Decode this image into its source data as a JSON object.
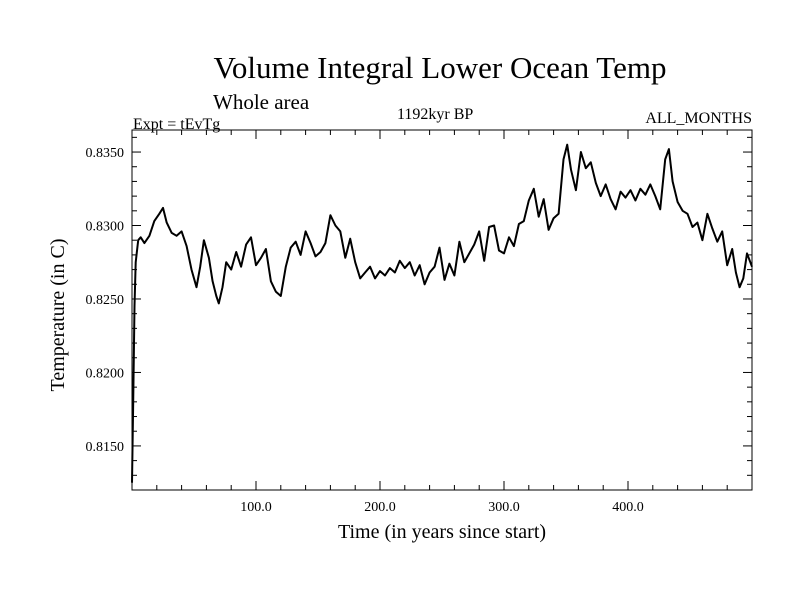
{
  "chart_data": {
    "type": "line",
    "title": "Volume Integral Lower Ocean Temp",
    "subtitle": "Whole area",
    "experiment": "Expt = tEvTg",
    "period": "1192kyr BP",
    "months": "ALL_MONTHS",
    "xlabel": "Time (in years since start)",
    "ylabel": "Temperature (in C)",
    "xlim": [
      0,
      500
    ],
    "ylim": [
      0.812,
      0.8365
    ],
    "xticks": [
      100,
      200,
      300,
      400
    ],
    "xtick_labels": [
      "100.0",
      "200.0",
      "300.0",
      "400.0"
    ],
    "yticks": [
      0.815,
      0.82,
      0.825,
      0.83,
      0.835
    ],
    "ytick_labels": [
      "0.8150",
      "0.8200",
      "0.8250",
      "0.8300",
      "0.8350"
    ],
    "grid": false,
    "series": [
      {
        "name": "Temperature",
        "x": [
          0,
          1,
          2,
          3,
          5,
          7,
          10,
          14,
          18,
          22,
          25,
          28,
          32,
          36,
          40,
          44,
          48,
          52,
          55,
          58,
          62,
          65,
          68,
          70,
          73,
          76,
          80,
          84,
          88,
          92,
          96,
          100,
          104,
          108,
          112,
          116,
          120,
          124,
          128,
          132,
          136,
          140,
          144,
          148,
          152,
          156,
          160,
          164,
          168,
          172,
          176,
          180,
          184,
          188,
          192,
          196,
          200,
          204,
          208,
          212,
          216,
          220,
          224,
          228,
          232,
          236,
          240,
          244,
          248,
          252,
          256,
          260,
          264,
          268,
          272,
          276,
          280,
          284,
          288,
          292,
          296,
          300,
          304,
          308,
          312,
          316,
          320,
          324,
          328,
          332,
          336,
          340,
          344,
          348,
          351,
          354,
          358,
          362,
          366,
          370,
          374,
          378,
          382,
          386,
          390,
          394,
          398,
          402,
          406,
          410,
          414,
          418,
          422,
          426,
          430,
          433,
          436,
          440,
          444,
          448,
          452,
          456,
          460,
          464,
          468,
          472,
          476,
          480,
          484,
          487,
          490,
          493,
          496,
          500
        ],
        "values": [
          0.8125,
          0.818,
          0.8245,
          0.8275,
          0.829,
          0.8292,
          0.8288,
          0.8293,
          0.8303,
          0.8308,
          0.8312,
          0.8302,
          0.8295,
          0.8293,
          0.8296,
          0.8286,
          0.827,
          0.8258,
          0.8272,
          0.829,
          0.8278,
          0.8262,
          0.8252,
          0.8247,
          0.8258,
          0.8275,
          0.827,
          0.8282,
          0.8272,
          0.8287,
          0.8292,
          0.8273,
          0.8278,
          0.8284,
          0.8262,
          0.8255,
          0.8252,
          0.8272,
          0.8285,
          0.8289,
          0.828,
          0.8296,
          0.8288,
          0.8279,
          0.8282,
          0.8288,
          0.8307,
          0.83,
          0.8296,
          0.8278,
          0.8291,
          0.8275,
          0.8264,
          0.8268,
          0.8272,
          0.8264,
          0.8269,
          0.8266,
          0.8271,
          0.8268,
          0.8276,
          0.8271,
          0.8275,
          0.8266,
          0.8273,
          0.826,
          0.8268,
          0.8272,
          0.8285,
          0.8263,
          0.8274,
          0.8266,
          0.8289,
          0.8275,
          0.8281,
          0.8287,
          0.8296,
          0.8276,
          0.8299,
          0.83,
          0.8283,
          0.8281,
          0.8292,
          0.8286,
          0.8301,
          0.8303,
          0.8317,
          0.8325,
          0.8306,
          0.8318,
          0.8297,
          0.8305,
          0.8308,
          0.8345,
          0.8355,
          0.8338,
          0.8324,
          0.835,
          0.8339,
          0.8343,
          0.8329,
          0.832,
          0.8328,
          0.8318,
          0.8311,
          0.8323,
          0.8319,
          0.8324,
          0.8317,
          0.8325,
          0.8321,
          0.8328,
          0.832,
          0.8311,
          0.8345,
          0.8352,
          0.833,
          0.8316,
          0.831,
          0.8308,
          0.8299,
          0.8302,
          0.829,
          0.8308,
          0.8298,
          0.8289,
          0.8296,
          0.8273,
          0.8284,
          0.8268,
          0.8258,
          0.8264,
          0.8281,
          0.8272
        ]
      }
    ]
  }
}
